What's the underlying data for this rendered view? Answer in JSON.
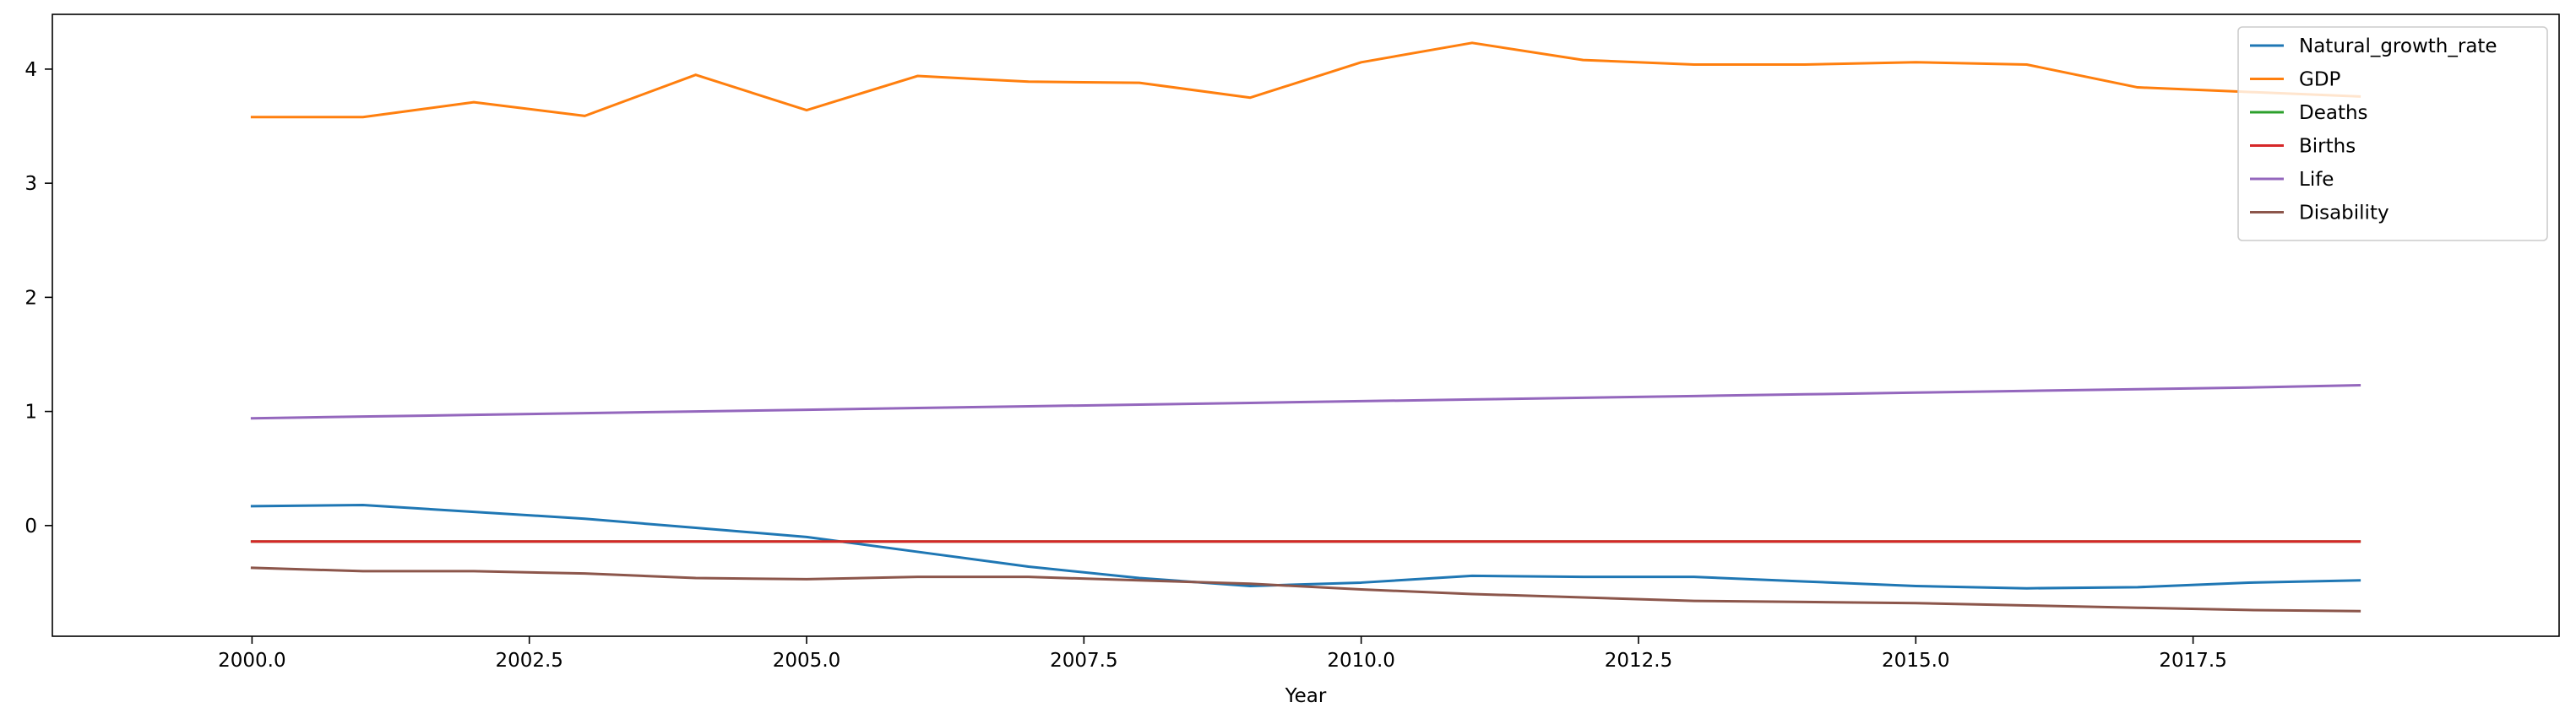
{
  "chart_data": {
    "type": "line",
    "title": "",
    "xlabel": "Year",
    "ylabel": "",
    "x": [
      2000,
      2001,
      2002,
      2003,
      2004,
      2005,
      2006,
      2007,
      2008,
      2009,
      2010,
      2011,
      2012,
      2013,
      2014,
      2015,
      2016,
      2017,
      2018,
      2019
    ],
    "xlim": [
      1998.2,
      2020.8
    ],
    "ylim": [
      -0.97,
      4.48
    ],
    "xticks": [
      2000.0,
      2002.5,
      2005.0,
      2007.5,
      2010.0,
      2012.5,
      2015.0,
      2017.5
    ],
    "xtick_labels": [
      "2000.0",
      "2002.5",
      "2005.0",
      "2007.5",
      "2010.0",
      "2012.5",
      "2015.0",
      "2017.5"
    ],
    "yticks": [
      0,
      1,
      2,
      3,
      4
    ],
    "ytick_labels": [
      "0",
      "1",
      "2",
      "3",
      "4"
    ],
    "grid": false,
    "legend_position": "top-right",
    "series": [
      {
        "name": "Natural_growth_rate",
        "color": "#1f77b4",
        "values": [
          0.17,
          0.18,
          0.12,
          0.06,
          -0.02,
          -0.1,
          -0.23,
          -0.36,
          -0.46,
          -0.53,
          -0.5,
          -0.44,
          -0.45,
          -0.45,
          -0.49,
          -0.53,
          -0.55,
          -0.54,
          -0.5,
          -0.48
        ]
      },
      {
        "name": "GDP",
        "color": "#ff7f0e",
        "values": [
          3.58,
          3.58,
          3.71,
          3.59,
          3.95,
          3.64,
          3.94,
          3.89,
          3.88,
          3.75,
          4.06,
          4.23,
          4.08,
          4.04,
          4.04,
          4.06,
          4.04,
          3.84,
          3.8,
          3.76
        ]
      },
      {
        "name": "Deaths",
        "color": "#2ca02c",
        "values": [
          -0.14,
          -0.14,
          -0.14,
          -0.14,
          -0.14,
          -0.14,
          -0.14,
          -0.14,
          -0.14,
          -0.14,
          -0.14,
          -0.14,
          -0.14,
          -0.14,
          -0.14,
          -0.14,
          -0.14,
          -0.14,
          -0.14,
          -0.14
        ]
      },
      {
        "name": "Births",
        "color": "#d62728",
        "values": [
          -0.14,
          -0.14,
          -0.14,
          -0.14,
          -0.14,
          -0.14,
          -0.14,
          -0.14,
          -0.14,
          -0.14,
          -0.14,
          -0.14,
          -0.14,
          -0.14,
          -0.14,
          -0.14,
          -0.14,
          -0.14,
          -0.14,
          -0.14
        ]
      },
      {
        "name": "Life",
        "color": "#9467bd",
        "values": [
          0.94,
          0.955,
          0.97,
          0.985,
          1.0,
          1.015,
          1.03,
          1.045,
          1.06,
          1.075,
          1.09,
          1.105,
          1.12,
          1.135,
          1.15,
          1.165,
          1.18,
          1.195,
          1.21,
          1.23
        ]
      },
      {
        "name": "Disability",
        "color": "#8c564b",
        "values": [
          -0.37,
          -0.4,
          -0.4,
          -0.42,
          -0.46,
          -0.47,
          -0.45,
          -0.45,
          -0.48,
          -0.51,
          -0.56,
          -0.6,
          -0.63,
          -0.66,
          -0.67,
          -0.68,
          -0.7,
          -0.72,
          -0.74,
          -0.75
        ]
      }
    ]
  }
}
